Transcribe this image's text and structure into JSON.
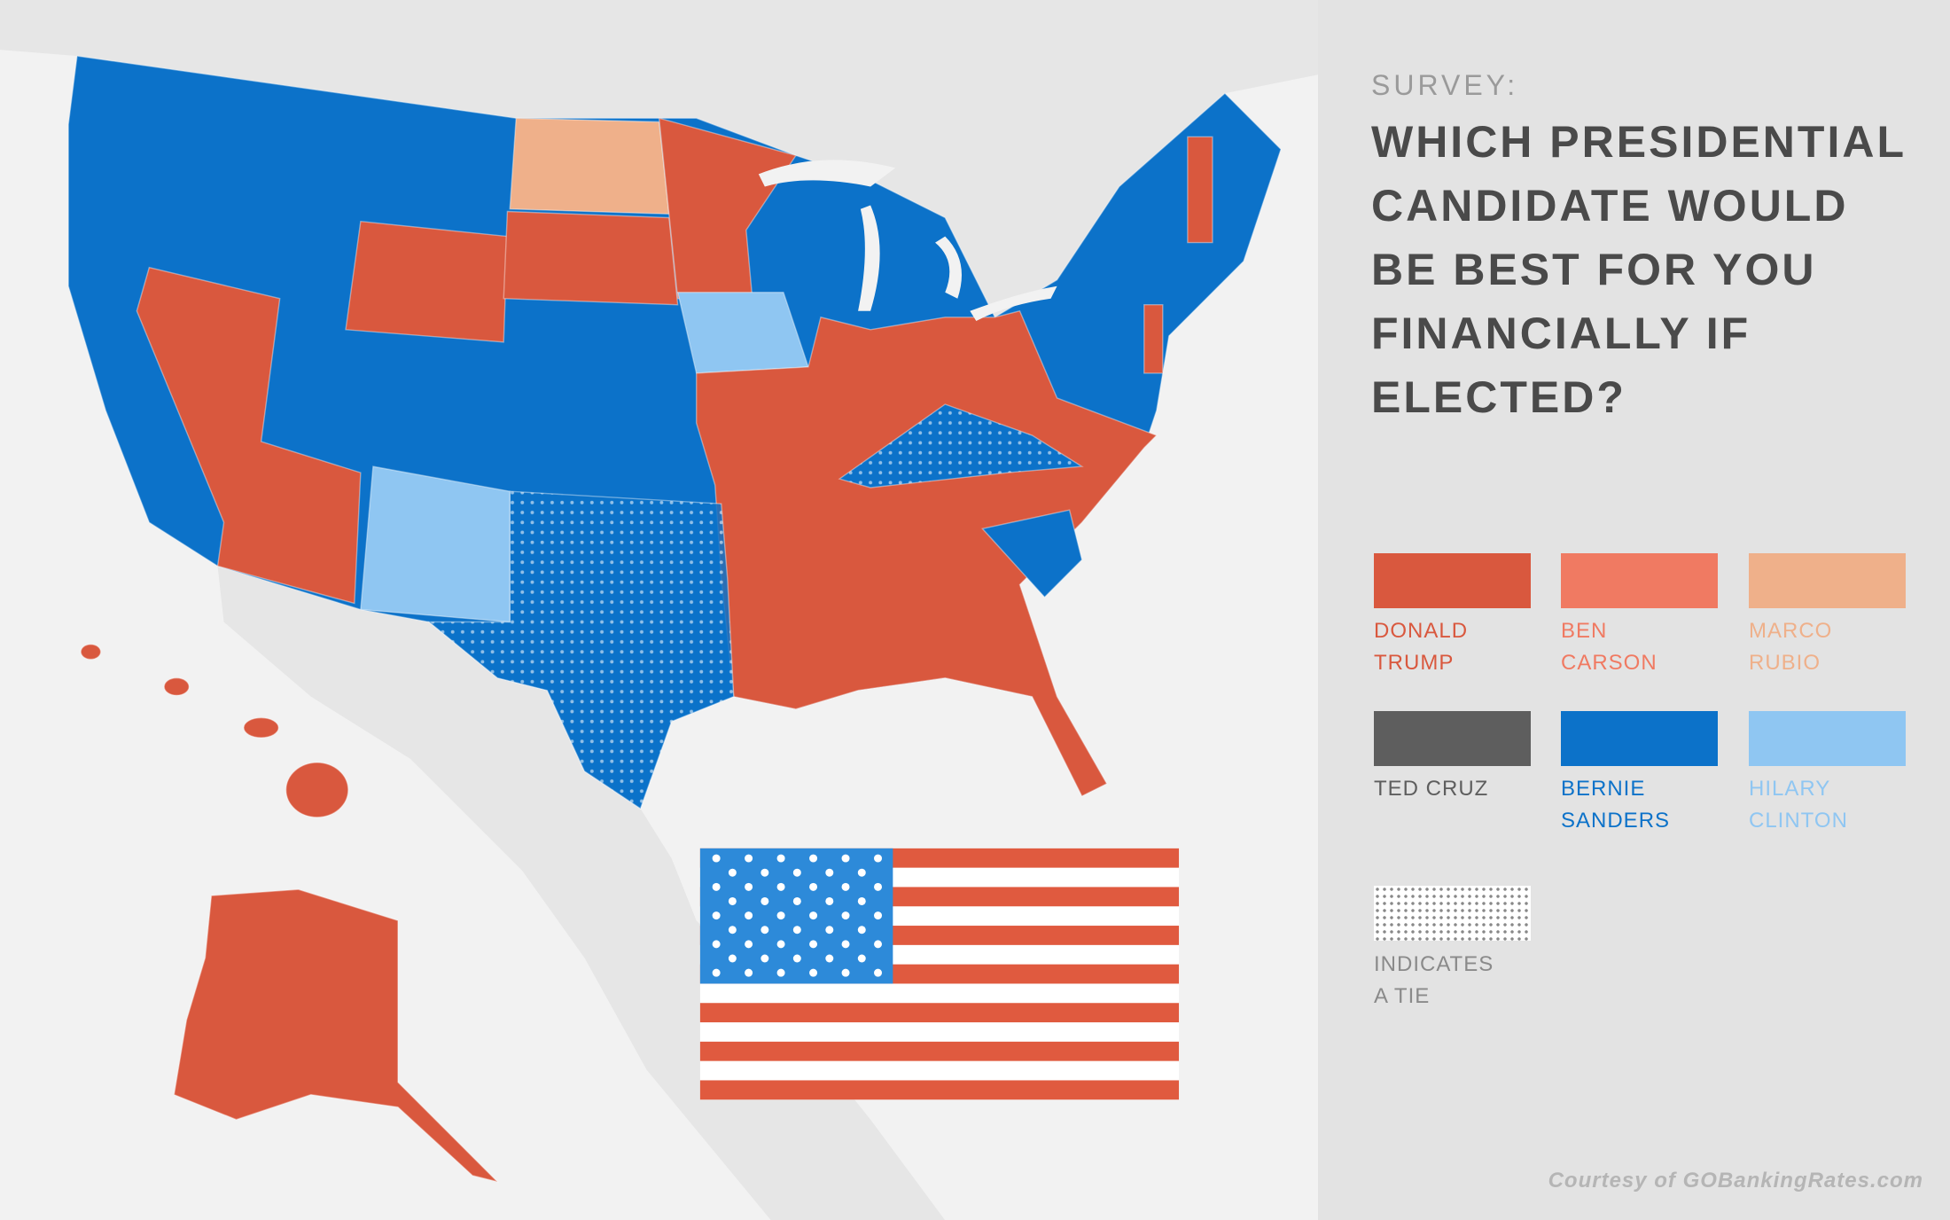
{
  "header": {
    "kicker": "SURVEY:",
    "title": "WHICH PRESIDENTIAL CANDIDATE WOULD BE BEST FOR YOU FINANCIALLY IF ELECTED?"
  },
  "legend": {
    "items": [
      {
        "label": "DONALD TRUMP",
        "color": "#d9583e"
      },
      {
        "label": "BEN CARSON",
        "color": "#f07a62"
      },
      {
        "label": "MARCO RUBIO",
        "color": "#efb08a"
      },
      {
        "label": "TED CRUZ",
        "color": "#5e5e5e"
      },
      {
        "label": "BERNIE SANDERS",
        "color": "#0c72c9"
      },
      {
        "label": "HILARY CLINTON",
        "color": "#8fc6f2"
      }
    ],
    "tie_label": "INDICATES A TIE"
  },
  "footer": {
    "credit": "Courtesy of GOBankingRates.com"
  }
}
